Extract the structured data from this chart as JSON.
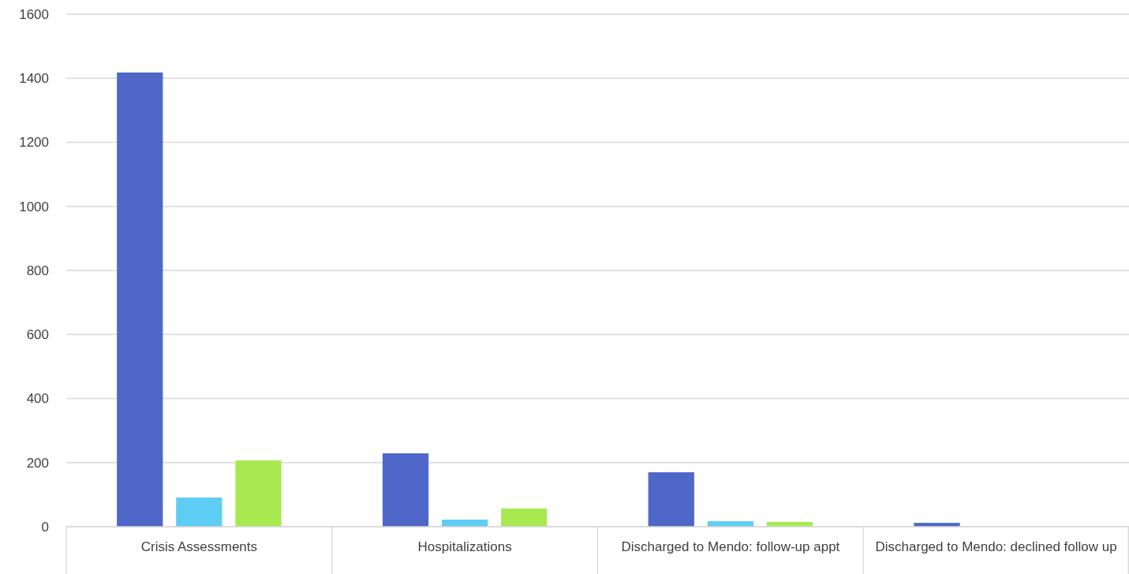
{
  "chart_data": {
    "type": "bar",
    "categories": [
      "Crisis Assessments",
      "Hospitalizations",
      "Discharged to Mendo: follow-up appt",
      "Discharged to Mendo: declined follow up"
    ],
    "series": [
      {
        "color": "#4f67c8",
        "values": [
          1418,
          229,
          170,
          12
        ]
      },
      {
        "color": "#5ecdf3",
        "values": [
          91,
          22,
          17,
          0
        ]
      },
      {
        "color": "#a8e952",
        "values": [
          207,
          57,
          15,
          0
        ]
      }
    ],
    "ylim": [
      0,
      1600
    ],
    "yticks": [
      0,
      200,
      400,
      600,
      800,
      1000,
      1200,
      1400,
      1600
    ],
    "grid": true
  }
}
